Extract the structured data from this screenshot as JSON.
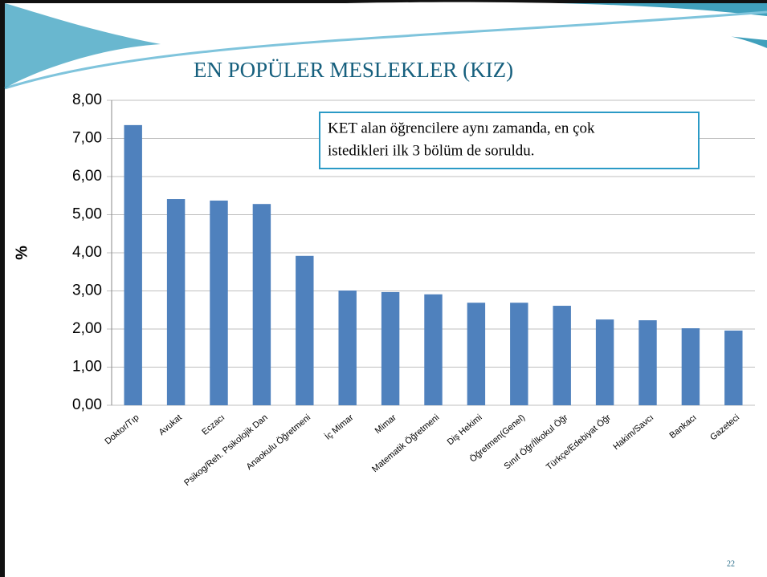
{
  "chart_data": {
    "type": "bar",
    "title": "EN POPÜLER MESLEKLER (KIZ)",
    "y_label": "%",
    "categories": [
      "Doktor/Tıp",
      "Avukat",
      "Eczacı",
      "Psikog/Reh. Psikolojik Dan",
      "Anaokulu Öğretmeni",
      "İç Mimar",
      "Mimar",
      "Matematik Öğretmeni",
      "Diş Hekimi",
      "Öğretmen(Genel)",
      "Sınıf Öğr/İlkokul Öğr",
      "Türkçe/Edebiyat Öğr",
      "Hakim/Savcı",
      "Bankacı",
      "Gazeteci"
    ],
    "values": [
      7.35,
      5.41,
      5.37,
      5.28,
      3.92,
      3.01,
      2.97,
      2.91,
      2.69,
      2.69,
      2.61,
      2.25,
      2.23,
      2.02,
      1.96
    ],
    "color": "#4f81bd",
    "ylim": [
      0,
      8
    ],
    "yticks": [
      {
        "value": 0,
        "label": "0,00"
      },
      {
        "value": 1,
        "label": "1,00"
      },
      {
        "value": 2,
        "label": "2,00"
      },
      {
        "value": 3,
        "label": "3,00"
      },
      {
        "value": 4,
        "label": "4,00"
      },
      {
        "value": 5,
        "label": "5,00"
      },
      {
        "value": 6,
        "label": "6,00"
      },
      {
        "value": 7,
        "label": "7,00"
      },
      {
        "value": 8,
        "label": "8,00"
      }
    ],
    "grid": true,
    "annotation": [
      "KET alan öğrencilere aynı zamanda, en çok",
      "istedikleri ilk 3 bölüm de soruldu."
    ]
  },
  "slide": {
    "page_number": "22"
  }
}
